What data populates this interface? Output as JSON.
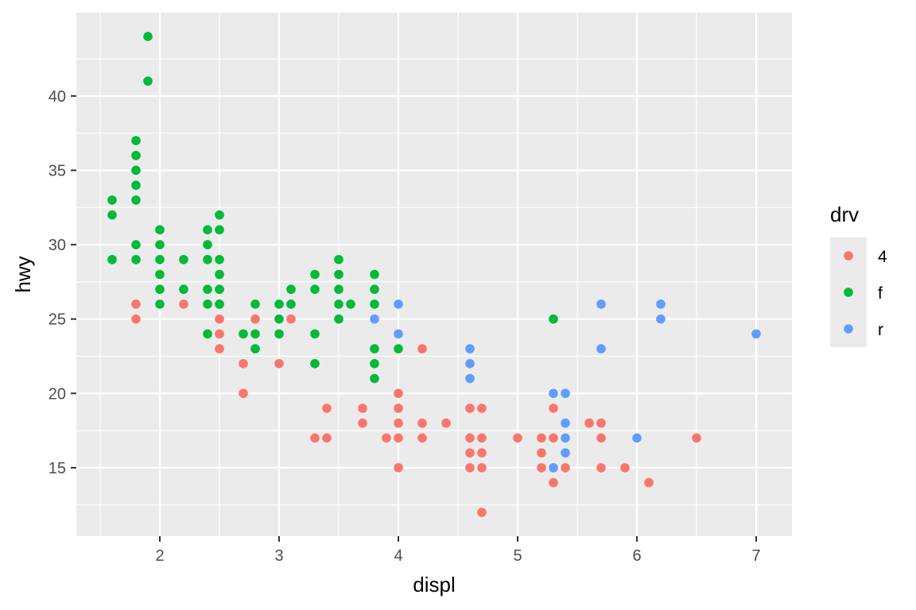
{
  "chart_data": {
    "type": "scatter",
    "xlabel": "displ",
    "ylabel": "hwy",
    "xlim": [
      1.3,
      7.3
    ],
    "ylim": [
      10.4,
      45.6
    ],
    "x_ticks": [
      2,
      3,
      4,
      5,
      6,
      7
    ],
    "y_ticks": [
      15,
      20,
      25,
      30,
      35,
      40
    ],
    "x_tick_labels": [
      "2",
      "3",
      "4",
      "5",
      "6",
      "7"
    ],
    "y_tick_labels": [
      "15",
      "20",
      "25",
      "30",
      "35",
      "40"
    ],
    "grid": true,
    "legend": {
      "title": "drv",
      "position": "right",
      "entries": [
        "4",
        "f",
        "r"
      ]
    },
    "colors": {
      "4": "#F8766D",
      "f": "#00BA38",
      "r": "#619CFF"
    },
    "background": "#EBEBEB",
    "series": [
      {
        "name": "4",
        "points": [
          [
            1.8,
            26
          ],
          [
            1.8,
            25
          ],
          [
            2.2,
            26
          ],
          [
            2.5,
            27
          ],
          [
            2.5,
            26
          ],
          [
            2.5,
            25
          ],
          [
            2.5,
            24
          ],
          [
            2.5,
            23
          ],
          [
            2.7,
            22
          ],
          [
            2.7,
            20
          ],
          [
            2.8,
            25
          ],
          [
            3.0,
            22
          ],
          [
            3.1,
            25
          ],
          [
            3.3,
            17
          ],
          [
            3.4,
            19
          ],
          [
            3.4,
            17
          ],
          [
            3.7,
            19
          ],
          [
            3.7,
            18
          ],
          [
            3.9,
            17
          ],
          [
            4.0,
            20
          ],
          [
            4.0,
            19
          ],
          [
            4.0,
            18
          ],
          [
            4.0,
            17
          ],
          [
            4.0,
            15
          ],
          [
            4.2,
            23
          ],
          [
            4.2,
            18
          ],
          [
            4.2,
            17
          ],
          [
            4.4,
            18
          ],
          [
            4.6,
            19
          ],
          [
            4.6,
            17
          ],
          [
            4.6,
            16
          ],
          [
            4.6,
            15
          ],
          [
            4.7,
            19
          ],
          [
            4.7,
            17
          ],
          [
            4.7,
            16
          ],
          [
            4.7,
            15
          ],
          [
            4.7,
            12
          ],
          [
            5.0,
            17
          ],
          [
            5.2,
            17
          ],
          [
            5.2,
            16
          ],
          [
            5.2,
            15
          ],
          [
            5.3,
            19
          ],
          [
            5.3,
            17
          ],
          [
            5.3,
            15
          ],
          [
            5.3,
            14
          ],
          [
            5.4,
            15
          ],
          [
            5.6,
            18
          ],
          [
            5.7,
            18
          ],
          [
            5.7,
            17
          ],
          [
            5.7,
            15
          ],
          [
            5.9,
            15
          ],
          [
            6.1,
            14
          ],
          [
            6.5,
            17
          ]
        ]
      },
      {
        "name": "f",
        "points": [
          [
            1.6,
            33
          ],
          [
            1.6,
            32
          ],
          [
            1.6,
            29
          ],
          [
            1.8,
            37
          ],
          [
            1.8,
            36
          ],
          [
            1.8,
            35
          ],
          [
            1.8,
            34
          ],
          [
            1.8,
            33
          ],
          [
            1.8,
            30
          ],
          [
            1.8,
            29
          ],
          [
            1.9,
            44
          ],
          [
            1.9,
            41
          ],
          [
            2.0,
            31
          ],
          [
            2.0,
            30
          ],
          [
            2.0,
            29
          ],
          [
            2.0,
            28
          ],
          [
            2.0,
            27
          ],
          [
            2.0,
            26
          ],
          [
            2.2,
            29
          ],
          [
            2.2,
            27
          ],
          [
            2.4,
            31
          ],
          [
            2.4,
            30
          ],
          [
            2.4,
            29
          ],
          [
            2.4,
            27
          ],
          [
            2.4,
            26
          ],
          [
            2.4,
            24
          ],
          [
            2.5,
            32
          ],
          [
            2.5,
            31
          ],
          [
            2.5,
            29
          ],
          [
            2.5,
            28
          ],
          [
            2.5,
            27
          ],
          [
            2.5,
            26
          ],
          [
            2.7,
            24
          ],
          [
            2.8,
            26
          ],
          [
            2.8,
            24
          ],
          [
            2.8,
            23
          ],
          [
            3.0,
            26
          ],
          [
            3.0,
            25
          ],
          [
            3.0,
            24
          ],
          [
            3.1,
            27
          ],
          [
            3.1,
            26
          ],
          [
            3.3,
            28
          ],
          [
            3.3,
            27
          ],
          [
            3.3,
            24
          ],
          [
            3.3,
            22
          ],
          [
            3.5,
            29
          ],
          [
            3.5,
            28
          ],
          [
            3.5,
            27
          ],
          [
            3.5,
            26
          ],
          [
            3.5,
            25
          ],
          [
            3.6,
            26
          ],
          [
            3.8,
            28
          ],
          [
            3.8,
            27
          ],
          [
            3.8,
            26
          ],
          [
            3.8,
            23
          ],
          [
            3.8,
            22
          ],
          [
            3.8,
            21
          ],
          [
            4.0,
            23
          ],
          [
            5.3,
            25
          ]
        ]
      },
      {
        "name": "r",
        "points": [
          [
            3.8,
            25
          ],
          [
            4.0,
            26
          ],
          [
            4.0,
            24
          ],
          [
            4.6,
            23
          ],
          [
            4.6,
            22
          ],
          [
            4.6,
            21
          ],
          [
            5.3,
            20
          ],
          [
            5.3,
            15
          ],
          [
            5.4,
            20
          ],
          [
            5.4,
            18
          ],
          [
            5.4,
            17
          ],
          [
            5.4,
            16
          ],
          [
            5.7,
            26
          ],
          [
            5.7,
            23
          ],
          [
            6.0,
            17
          ],
          [
            6.2,
            26
          ],
          [
            6.2,
            25
          ],
          [
            7.0,
            24
          ]
        ]
      }
    ]
  }
}
